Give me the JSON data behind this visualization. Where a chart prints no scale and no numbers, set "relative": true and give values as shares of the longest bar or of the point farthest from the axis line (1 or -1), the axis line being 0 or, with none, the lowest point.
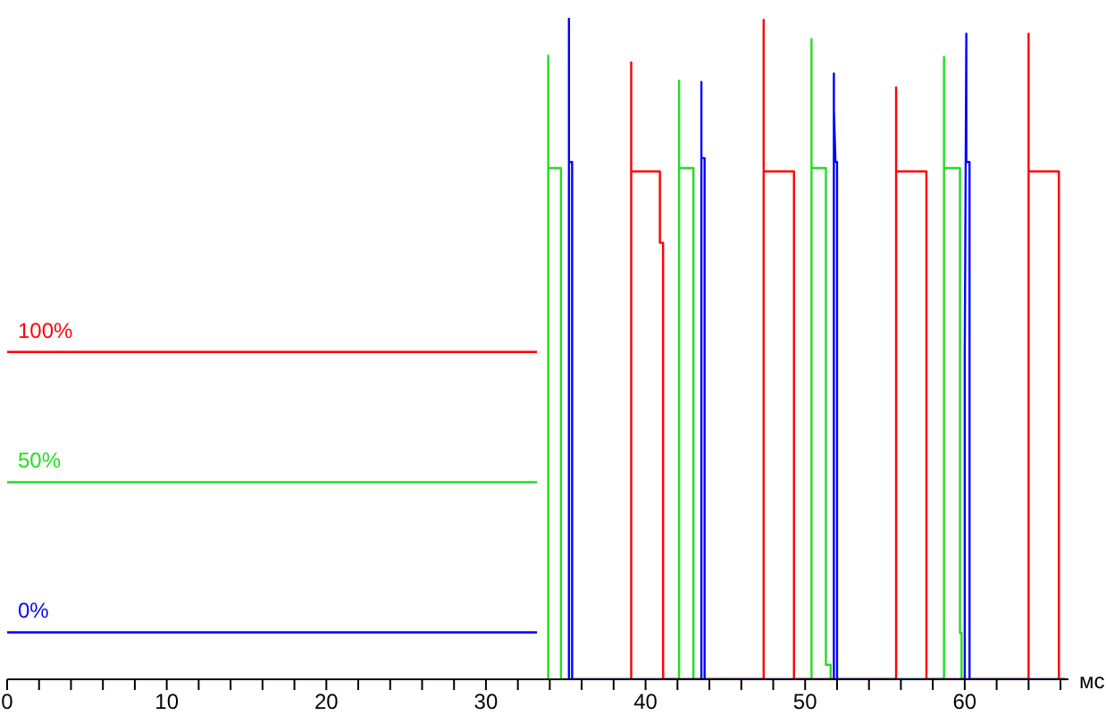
{
  "chart_data": {
    "type": "line",
    "relative": true,
    "xlabel": "мс",
    "xlim": [
      0,
      66.5
    ],
    "xticks": [
      0,
      {
        "value": 2,
        "label": null
      },
      {
        "value": 4,
        "label": null
      },
      {
        "value": 6,
        "label": null
      },
      {
        "value": 8,
        "label": null
      },
      10,
      {
        "value": 12,
        "label": null
      },
      {
        "value": 14,
        "label": null
      },
      {
        "value": 16,
        "label": null
      },
      {
        "value": 18,
        "label": null
      },
      20,
      {
        "value": 22,
        "label": null
      },
      {
        "value": 24,
        "label": null
      },
      {
        "value": 26,
        "label": null
      },
      {
        "value": 28,
        "label": null
      },
      30,
      {
        "value": 32,
        "label": null
      },
      {
        "value": 34,
        "label": null
      },
      {
        "value": 36,
        "label": null
      },
      {
        "value": 38,
        "label": null
      },
      40,
      {
        "value": 42,
        "label": null
      },
      {
        "value": 44,
        "label": null
      },
      {
        "value": 46,
        "label": null
      },
      {
        "value": 48,
        "label": null
      },
      50,
      {
        "value": 52,
        "label": null
      },
      {
        "value": 54,
        "label": null
      },
      {
        "value": 56,
        "label": null
      },
      {
        "value": 58,
        "label": null
      },
      60,
      {
        "value": 62,
        "label": null
      },
      {
        "value": 64,
        "label": null
      },
      {
        "value": 66,
        "label": null
      }
    ],
    "marker": "none",
    "line_style": "solid",
    "series": [
      {
        "name": "50%",
        "color": "#22dd22",
        "x": [
          0,
          33.2,
          33.4,
          33.9,
          33.9,
          33.9,
          34.7,
          34.7,
          42.1,
          42.1,
          42.1,
          43.0,
          43.0,
          50.4,
          50.4,
          50.4,
          51.3,
          51.3,
          51.6,
          51.6,
          58.7,
          58.7,
          58.7,
          59.7,
          59.7,
          59.8,
          59.8,
          66.3
        ],
        "values": [
          0.298,
          0.298,
          null,
          0,
          0.943,
          0.773,
          0.773,
          0,
          0,
          0.905,
          0.773,
          0.773,
          0,
          0,
          0.968,
          0.773,
          0.773,
          0.022,
          0.022,
          0,
          0,
          0.941,
          0.773,
          0.773,
          0.07,
          0.07,
          0,
          0
        ]
      },
      {
        "name": "100%",
        "color": "#ff0000",
        "x": [
          0,
          33.2,
          33.4,
          39.1,
          39.1,
          39.1,
          40.9,
          40.9,
          41.1,
          41.1,
          47.4,
          47.4,
          47.4,
          49.3,
          49.3,
          55.7,
          55.7,
          55.7,
          57.6,
          57.6,
          64.0,
          64.0,
          64.0,
          65.9,
          65.9,
          66.3
        ],
        "values": [
          0.495,
          0.495,
          null,
          0,
          0.933,
          0.768,
          0.768,
          0.66,
          0.66,
          0,
          0,
          0.997,
          0.768,
          0.768,
          0,
          0,
          0.895,
          0.768,
          0.768,
          0,
          0,
          0.976,
          0.768,
          0.768,
          0,
          0
        ]
      },
      {
        "name": "0%",
        "color": "#0000ff",
        "x": [
          0,
          33.2,
          33.4,
          35.2,
          35.2,
          35.2,
          35.4,
          35.4,
          43.5,
          43.5,
          43.5,
          43.7,
          43.7,
          51.8,
          51.8,
          51.8,
          51.9,
          52.0,
          52.0,
          60.0,
          60.0,
          60.1,
          60.1,
          60.3,
          60.3,
          66.3
        ],
        "values": [
          0.071,
          0.071,
          null,
          0,
          1,
          0.782,
          0.782,
          0,
          0,
          0.903,
          0.788,
          0.788,
          0,
          0,
          0.916,
          0.862,
          0.782,
          0.782,
          0,
          0,
          0.489,
          0.976,
          0.782,
          0.782,
          0,
          0
        ]
      }
    ]
  }
}
